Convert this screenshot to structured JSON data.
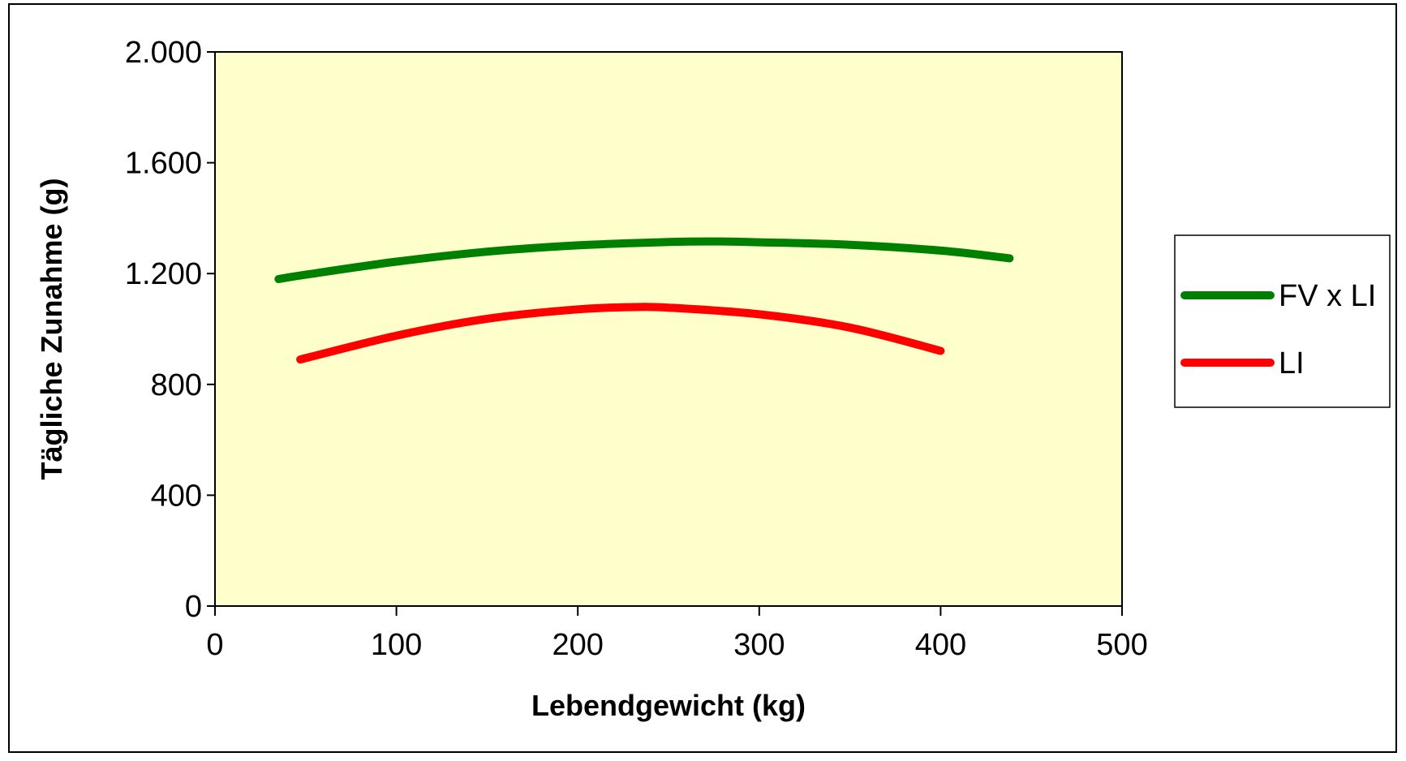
{
  "chart_data": {
    "type": "line",
    "title": "",
    "xlabel": "Lebendgewicht (kg)",
    "ylabel": "Tägliche Zunahme (g)",
    "xlim": [
      0,
      500
    ],
    "ylim": [
      0,
      2000
    ],
    "x_ticks": [
      0,
      100,
      200,
      300,
      400,
      500
    ],
    "x_tick_labels": [
      "0",
      "100",
      "200",
      "300",
      "400",
      "500"
    ],
    "y_ticks": [
      0,
      400,
      800,
      1200,
      1600,
      2000
    ],
    "y_tick_labels": [
      "0",
      "400",
      "800",
      "1.200",
      "1.600",
      "2.000"
    ],
    "grid": false,
    "plot_background": "#FFFFCC",
    "legend_position": "right",
    "series": [
      {
        "name": "FV x LI",
        "color": "#008000",
        "x": [
          35,
          50,
          100,
          150,
          200,
          250,
          275,
          300,
          350,
          400,
          438
        ],
        "y": [
          1180,
          1196,
          1243,
          1279,
          1302,
          1314,
          1316,
          1313,
          1304,
          1283,
          1255
        ]
      },
      {
        "name": "LI",
        "color": "#FF0000",
        "x": [
          47,
          100,
          150,
          200,
          230,
          250,
          300,
          350,
          400
        ],
        "y": [
          890,
          976,
          1037,
          1071,
          1079,
          1077,
          1053,
          1005,
          921
        ]
      }
    ]
  }
}
